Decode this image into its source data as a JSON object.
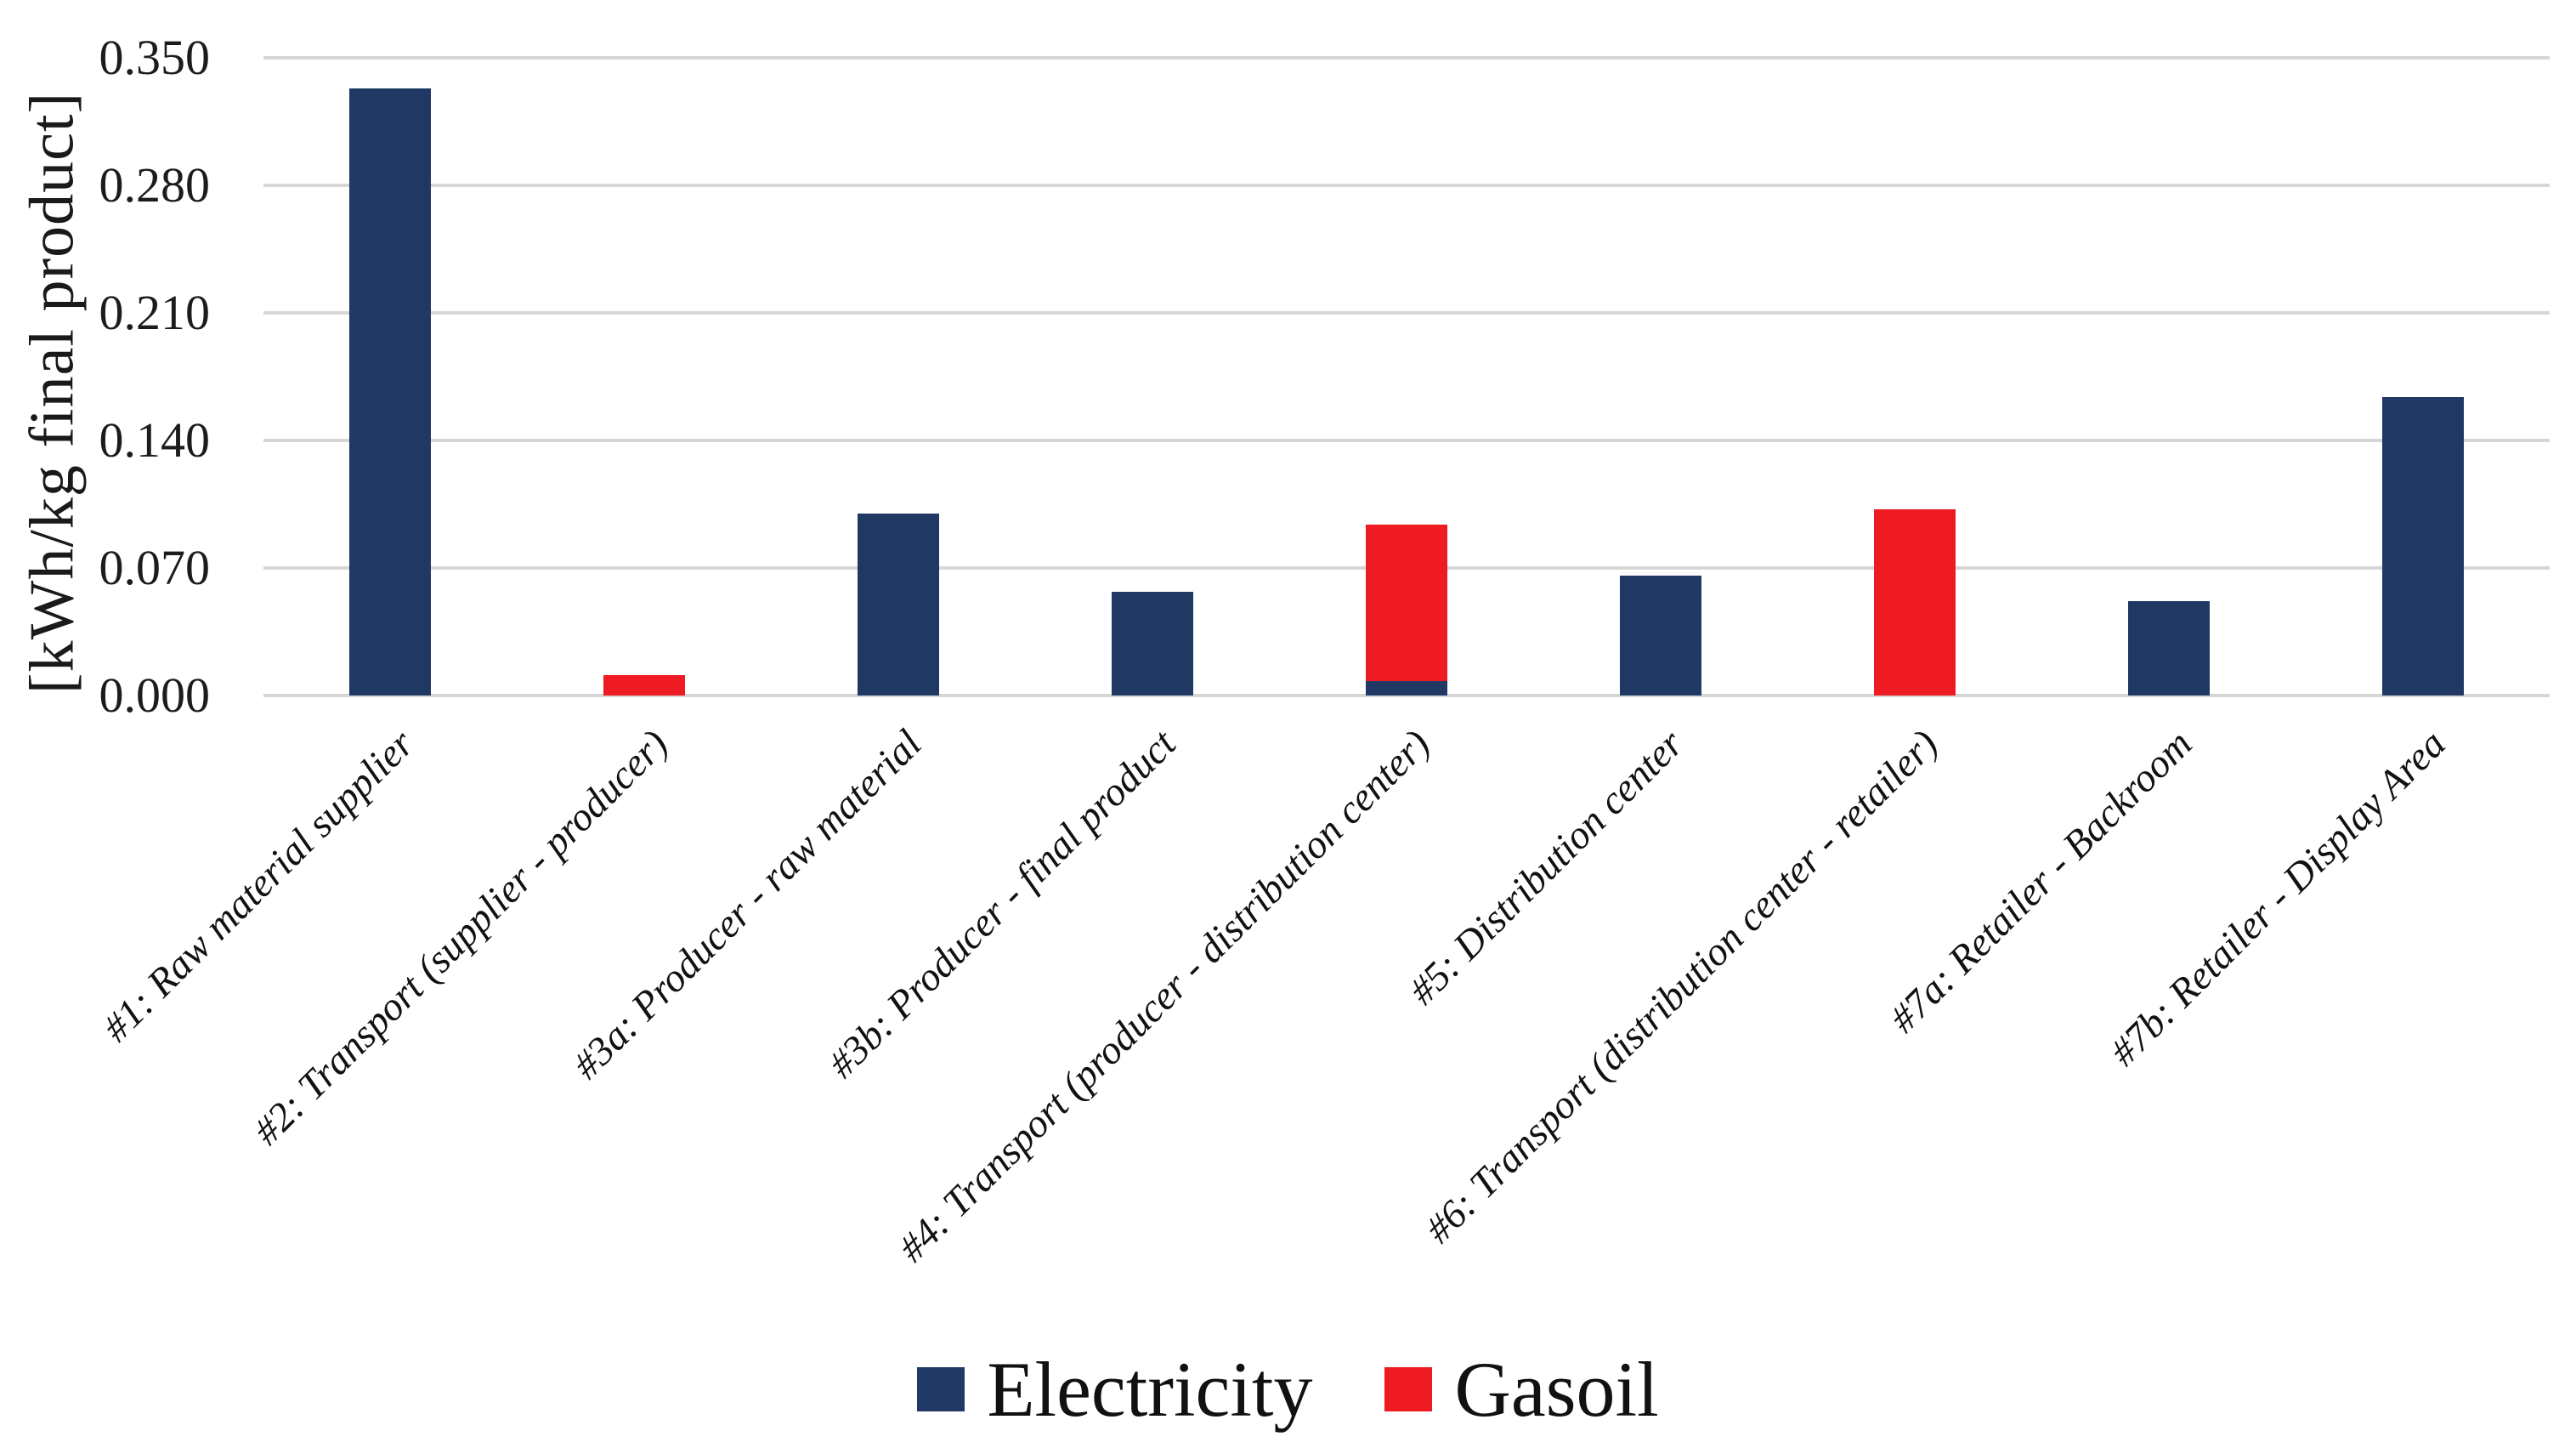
{
  "chart_data": {
    "type": "bar",
    "stacked": true,
    "title": "",
    "xlabel": "",
    "ylabel": "[kWh/kg final product]",
    "categories": [
      "#1: Raw material supplier",
      "#2: Transport (supplier - producer)",
      "#3a: Producer - raw material",
      "#3b: Producer - final product",
      "#4: Transport (producer - distribution center)",
      "#5: Distribution center",
      "#6: Transport (distribution center - retailer)",
      "#7a: Retailer - Backroom",
      "#7b: Retailer - Display Area"
    ],
    "series": [
      {
        "name": "Electricity",
        "color": "#1f3864",
        "values": [
          0.333,
          0,
          0.1,
          0.057,
          0.008,
          0.066,
          0,
          0.052,
          0.164
        ]
      },
      {
        "name": "Gasoil",
        "color": "#ee1b23",
        "values": [
          0,
          0.011,
          0,
          0,
          0.086,
          0,
          0.102,
          0,
          0
        ]
      }
    ],
    "y_axis": {
      "min": 0.0,
      "max": 0.35,
      "tick_step": 0.07,
      "tick_labels": [
        "0.000",
        "0.070",
        "0.140",
        "0.210",
        "0.280",
        "0.350"
      ]
    },
    "grid": true,
    "gridline_color": "#d6d6d6",
    "legend_position": "bottom"
  }
}
